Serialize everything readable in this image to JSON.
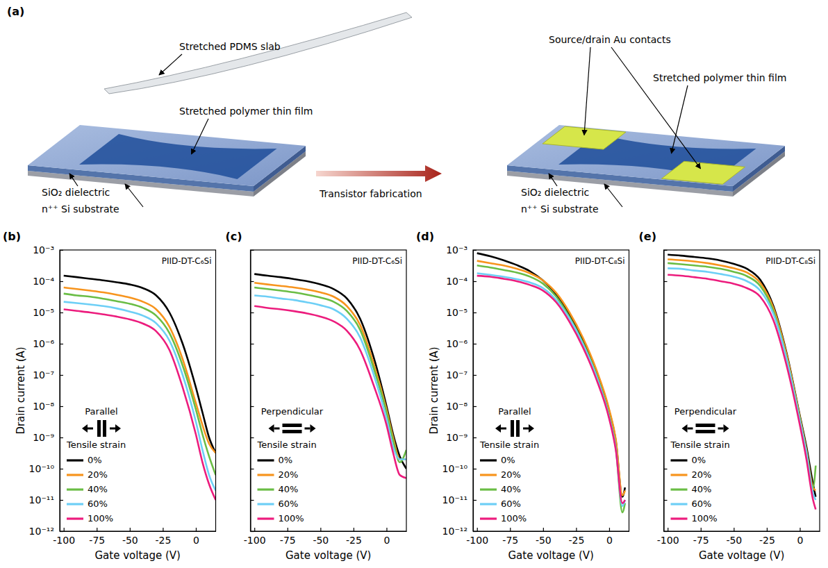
{
  "diagram": {
    "panel_label": "(a)",
    "left": {
      "pdms_label": "Stretched PDMS slab",
      "film_label": "Stretched polymer thin film",
      "dielectric_label": "SiO₂ dielectric",
      "substrate_label": "n⁺⁺ Si substrate"
    },
    "arrow_label": "Transistor fabrication",
    "right": {
      "contacts_label": "Source/drain Au contacts",
      "film_label": "Stretched polymer thin film",
      "dielectric_label": "SiO₂ dielectric",
      "substrate_label": "n⁺⁺ Si substrate"
    }
  },
  "chart_data": [
    {
      "type": "line",
      "panel_label": "(b)",
      "title": "PIID-DT-C₆Si",
      "annotation": "Parallel",
      "legend_title": "Tensile strain",
      "xlabel": "Gate voltage (V)",
      "ylabel": "Drain current (A)",
      "x": [
        -100,
        -90,
        -80,
        -70,
        -60,
        -50,
        -40,
        -30,
        -20,
        -10,
        0,
        5,
        10,
        15
      ],
      "xlim": [
        -103,
        15
      ],
      "xticks": [
        -100,
        -75,
        -50,
        -25,
        0
      ],
      "ylim": [
        1e-12,
        0.001
      ],
      "yticks": [
        {
          "value": 1e-12,
          "label": "10⁻¹²"
        },
        {
          "value": 1e-11,
          "label": "10⁻¹¹"
        },
        {
          "value": 1e-10,
          "label": "10⁻¹⁰"
        },
        {
          "value": 1e-09,
          "label": "10⁻⁹"
        },
        {
          "value": 1e-08,
          "label": "10⁻⁸"
        },
        {
          "value": 1e-07,
          "label": "10⁻⁷"
        },
        {
          "value": 1e-06,
          "label": "10⁻⁶"
        },
        {
          "value": 1e-05,
          "label": "10⁻⁵"
        },
        {
          "value": 0.0001,
          "label": "10⁻⁴"
        },
        {
          "value": 0.001,
          "label": "10⁻³"
        }
      ],
      "log": "y",
      "grid": false,
      "legend": "bottom-left",
      "series": [
        {
          "name": "0%",
          "color": "#000000",
          "values": [
            0.00015,
            0.000135,
            0.00012,
            0.000107,
            9.3e-05,
            7.9e-05,
            6e-05,
            3.5e-05,
            1e-05,
            1e-06,
            4e-08,
            6.3e-09,
            1e-09,
            3.2e-10
          ]
        },
        {
          "name": "20%",
          "color": "#f7941d",
          "values": [
            6.3e-05,
            5.6e-05,
            5e-05,
            4.4e-05,
            3.7e-05,
            3e-05,
            2.2e-05,
            1.26e-05,
            3.5e-06,
            3.2e-07,
            1.26e-08,
            2.5e-09,
            6.3e-10,
            3.2e-10
          ]
        },
        {
          "name": "40%",
          "color": "#6abd45",
          "values": [
            4e-05,
            3.5e-05,
            3.2e-05,
            2.75e-05,
            2.3e-05,
            1.9e-05,
            1.4e-05,
            7.9e-06,
            2.2e-06,
            2e-07,
            7.9e-09,
            1.26e-09,
            2.5e-10,
            6.3e-11
          ]
        },
        {
          "name": "60%",
          "color": "#6dcff6",
          "values": [
            2.2e-05,
            2e-05,
            1.8e-05,
            1.6e-05,
            1.35e-05,
            1.07e-05,
            7.9e-06,
            4.5e-06,
            1.26e-06,
            1e-07,
            3.2e-09,
            4e-10,
            6.3e-11,
            2e-11
          ]
        },
        {
          "name": "100%",
          "color": "#ec1c7d",
          "values": [
            1.26e-05,
            1.12e-05,
            1e-05,
            8.7e-06,
            7.4e-06,
            6e-06,
            4.4e-06,
            2.5e-06,
            6.3e-07,
            4e-08,
            1.26e-09,
            1.6e-10,
            3.2e-11,
            1e-11
          ]
        }
      ]
    },
    {
      "type": "line",
      "panel_label": "(c)",
      "title": "PIID-DT-C₆Si",
      "annotation": "Perpendicular",
      "legend_title": "Tensile strain",
      "xlabel": "Gate voltage (V)",
      "x": [
        -100,
        -90,
        -80,
        -70,
        -60,
        -50,
        -40,
        -30,
        -20,
        -10,
        0,
        5,
        10,
        15
      ],
      "xlim": [
        -103,
        15
      ],
      "xticks": [
        -100,
        -75,
        -50,
        -25,
        0
      ],
      "ylim": [
        1e-12,
        0.001
      ],
      "yticks": [
        1e-12,
        1e-11,
        1e-10,
        1e-09,
        1e-08,
        1e-07,
        1e-06,
        1e-05,
        0.0001,
        0.001
      ],
      "tick_labels": "x",
      "log": "y",
      "grid": false,
      "legend": "bottom-left",
      "series": [
        {
          "name": "0%",
          "color": "#000000",
          "values": [
            0.00017,
            0.00015,
            0.000135,
            0.000117,
            0.0001,
            7.9e-05,
            5.6e-05,
            2.8e-05,
            6.3e-06,
            4e-07,
            1e-08,
            1.26e-09,
            2.5e-10,
            1e-10
          ]
        },
        {
          "name": "20%",
          "color": "#f7941d",
          "values": [
            8.9e-05,
            7.9e-05,
            7.1e-05,
            6.3e-05,
            5.4e-05,
            4.4e-05,
            3.2e-05,
            1.6e-05,
            4e-06,
            2.5e-07,
            7.9e-09,
            1e-09,
            2e-10,
            2e-10
          ]
        },
        {
          "name": "40%",
          "color": "#6abd45",
          "values": [
            6.3e-05,
            5.6e-05,
            5e-05,
            4.4e-05,
            3.7e-05,
            3e-05,
            2.2e-05,
            1.12e-05,
            2.8e-06,
            1.8e-07,
            6.3e-09,
            7.9e-10,
            1.6e-10,
            4e-10
          ]
        },
        {
          "name": "60%",
          "color": "#6dcff6",
          "values": [
            3.5e-05,
            3.2e-05,
            2.8e-05,
            2.5e-05,
            2.1e-05,
            1.7e-05,
            1.26e-05,
            6.3e-06,
            1.6e-06,
            1.12e-07,
            4e-09,
            5e-10,
            2e-10,
            2e-10
          ]
        },
        {
          "name": "100%",
          "color": "#ec1c7d",
          "values": [
            1.6e-05,
            1.4e-05,
            1.26e-05,
            1.1e-05,
            9.3e-06,
            7.4e-06,
            5.2e-06,
            2.6e-06,
            6.3e-07,
            5e-08,
            2.5e-09,
            3.2e-10,
            6.3e-11,
            5e-11
          ]
        }
      ]
    },
    {
      "type": "line",
      "panel_label": "(d)",
      "title": "PIID-DT-C₈Si",
      "annotation": "Parallel",
      "legend_title": "Tensile strain",
      "xlabel": "Gate voltage (V)",
      "ylabel": "Drain current (A)",
      "x": [
        -100,
        -90,
        -80,
        -70,
        -60,
        -50,
        -40,
        -30,
        -20,
        -10,
        0,
        5,
        10,
        12
      ],
      "xlim": [
        -103,
        15
      ],
      "xticks": [
        -100,
        -75,
        -50,
        -25,
        0
      ],
      "ylim": [
        1e-12,
        0.001
      ],
      "yticks": [
        {
          "value": 1e-12,
          "label": "10⁻¹²"
        },
        {
          "value": 1e-11,
          "label": "10⁻¹¹"
        },
        {
          "value": 1e-10,
          "label": "10⁻¹⁰"
        },
        {
          "value": 1e-09,
          "label": "10⁻⁹"
        },
        {
          "value": 1e-08,
          "label": "10⁻⁸"
        },
        {
          "value": 1e-07,
          "label": "10⁻⁷"
        },
        {
          "value": 1e-06,
          "label": "10⁻⁶"
        },
        {
          "value": 1e-05,
          "label": "10⁻⁵"
        },
        {
          "value": 0.0001,
          "label": "10⁻⁴"
        },
        {
          "value": 0.001,
          "label": "10⁻³"
        }
      ],
      "log": "y",
      "grid": false,
      "legend": "bottom-left",
      "series": [
        {
          "name": "0%",
          "color": "#000000",
          "values": [
            0.00079,
            0.00063,
            0.00047,
            0.00033,
            0.00021,
            0.000105,
            3.8e-05,
            8.9e-06,
            1.4e-06,
            1.4e-07,
            7.1e-09,
            7.9e-10,
            1.26e-11,
            2.5e-11
          ]
        },
        {
          "name": "20%",
          "color": "#f7941d",
          "values": [
            0.00045,
            0.00038,
            0.00032,
            0.00025,
            0.00018,
            0.000105,
            4.2e-05,
            1e-05,
            1.6e-06,
            1.6e-07,
            7.9e-09,
            8.9e-10,
            1.4e-11,
            2e-11
          ]
        },
        {
          "name": "40%",
          "color": "#6abd45",
          "values": [
            0.00032,
            0.000275,
            0.00023,
            0.00019,
            0.00014,
            8.3e-05,
            3.2e-05,
            7.1e-06,
            1.12e-06,
            1.12e-07,
            5e-09,
            5e-10,
            4e-12,
            7.9e-12
          ]
        },
        {
          "name": "60%",
          "color": "#6dcff6",
          "values": [
            0.00018,
            0.00016,
            0.00014,
            0.000117,
            9.1e-05,
            6e-05,
            2.5e-05,
            6.3e-06,
            1e-06,
            1e-07,
            4.5e-09,
            4.5e-10,
            6.3e-12,
            1e-11
          ]
        },
        {
          "name": "100%",
          "color": "#ec1c7d",
          "values": [
            0.00015,
            0.00014,
            0.00012,
            0.0001,
            7.6e-05,
            5e-05,
            2.1e-05,
            5e-06,
            7.9e-07,
            7.9e-08,
            4e-09,
            4e-10,
            7.9e-12,
            1e-11
          ]
        }
      ]
    },
    {
      "type": "line",
      "panel_label": "(e)",
      "title": "PIID-DT-C₈Si",
      "annotation": "Perpendicular",
      "legend_title": "Tensile strain",
      "xlabel": "Gate voltage (V)",
      "x": [
        -100,
        -90,
        -80,
        -70,
        -60,
        -50,
        -40,
        -30,
        -20,
        -10,
        0,
        5,
        10,
        12
      ],
      "xlim": [
        -103,
        15
      ],
      "xticks": [
        -100,
        -75,
        -50,
        -25,
        0
      ],
      "ylim": [
        1e-12,
        0.001
      ],
      "yticks": [
        1e-12,
        1e-11,
        1e-10,
        1e-09,
        1e-08,
        1e-07,
        1e-06,
        1e-05,
        0.0001,
        0.001
      ],
      "tick_labels": "x",
      "log": "y",
      "grid": false,
      "legend": "bottom-left",
      "series": [
        {
          "name": "0%",
          "color": "#000000",
          "values": [
            0.00071,
            0.00066,
            0.0006,
            0.00054,
            0.00046,
            0.00036,
            0.00025,
            0.000112,
            1.6e-05,
            5e-07,
            5e-09,
            5e-10,
            3.2e-11,
            1.26e-11
          ]
        },
        {
          "name": "20%",
          "color": "#f7941d",
          "values": [
            0.0005,
            0.00047,
            0.00043,
            0.00038,
            0.00032,
            0.00026,
            0.00019,
            8.9e-05,
            1.4e-05,
            4.5e-07,
            4.5e-09,
            4e-10,
            2.5e-11,
            2e-11
          ]
        },
        {
          "name": "40%",
          "color": "#6abd45",
          "values": [
            0.00038,
            0.00035,
            0.00032,
            0.00029,
            0.00025,
            0.0002,
            0.000145,
            7.1e-05,
            1.12e-05,
            3.5e-07,
            4e-09,
            3.5e-10,
            2.5e-11,
            1.26e-10
          ]
        },
        {
          "name": "60%",
          "color": "#6dcff6",
          "values": [
            0.00026,
            0.00025,
            0.00022,
            0.0002,
            0.00017,
            0.00014,
            0.0001,
            5e-05,
            8.9e-06,
            3.2e-07,
            3.5e-09,
            3.2e-10,
            1.6e-11,
            1e-11
          ]
        },
        {
          "name": "100%",
          "color": "#ec1c7d",
          "values": [
            0.00016,
            0.00015,
            0.000135,
            0.00012,
            0.0001,
            8.3e-05,
            6e-05,
            3.2e-05,
            5.6e-06,
            2e-07,
            2.5e-09,
            2e-10,
            1e-11,
            5e-12
          ]
        }
      ]
    }
  ]
}
